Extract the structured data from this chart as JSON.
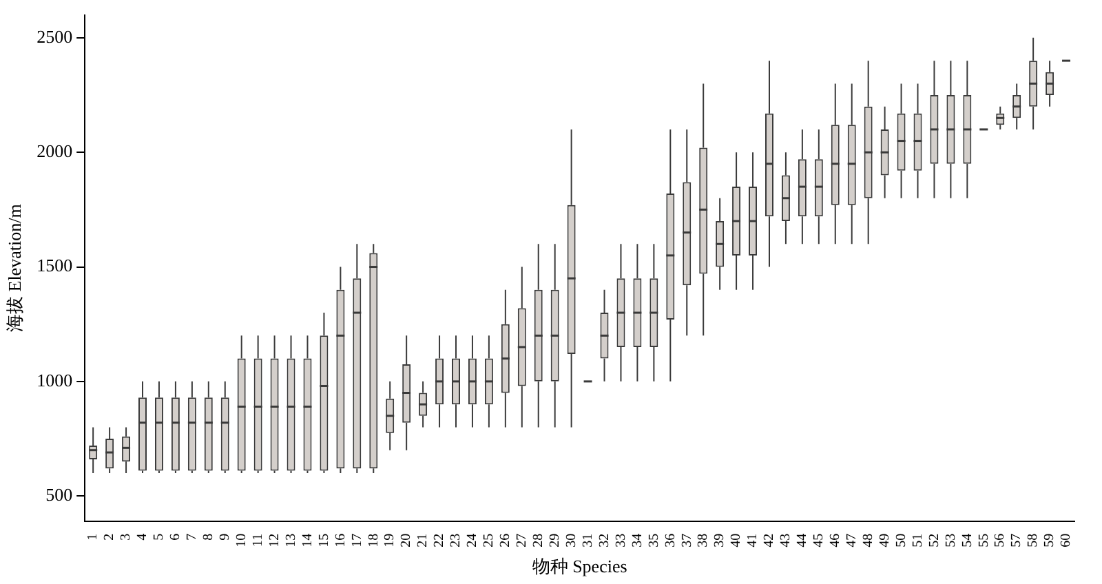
{
  "chart_data": {
    "type": "box",
    "xlabel": "物种 Species",
    "ylabel": "海拔 Elevation/m",
    "categories": [
      "1",
      "2",
      "3",
      "4",
      "5",
      "6",
      "7",
      "8",
      "9",
      "10",
      "11",
      "12",
      "13",
      "14",
      "15",
      "16",
      "17",
      "18",
      "19",
      "20",
      "21",
      "22",
      "23",
      "24",
      "25",
      "26",
      "27",
      "28",
      "29",
      "30",
      "31",
      "32",
      "33",
      "34",
      "35",
      "36",
      "37",
      "38",
      "39",
      "40",
      "41",
      "42",
      "43",
      "44",
      "45",
      "46",
      "47",
      "48",
      "49",
      "50",
      "51",
      "52",
      "53",
      "54",
      "55",
      "56",
      "57",
      "58",
      "59",
      "60"
    ],
    "ylim": [
      390,
      2600
    ],
    "yticks": [
      500,
      1000,
      1500,
      2000,
      2500
    ],
    "grid": false,
    "boxes": [
      {
        "low": 600,
        "q1": 660,
        "median": 700,
        "q3": 720,
        "high": 800
      },
      {
        "low": 600,
        "q1": 620,
        "median": 690,
        "q3": 750,
        "high": 800
      },
      {
        "low": 600,
        "q1": 650,
        "median": 710,
        "q3": 760,
        "high": 800
      },
      {
        "low": 600,
        "q1": 610,
        "median": 820,
        "q3": 930,
        "high": 1000
      },
      {
        "low": 600,
        "q1": 610,
        "median": 820,
        "q3": 930,
        "high": 1000
      },
      {
        "low": 600,
        "q1": 610,
        "median": 820,
        "q3": 930,
        "high": 1000
      },
      {
        "low": 600,
        "q1": 610,
        "median": 820,
        "q3": 930,
        "high": 1000
      },
      {
        "low": 600,
        "q1": 610,
        "median": 820,
        "q3": 930,
        "high": 1000
      },
      {
        "low": 600,
        "q1": 610,
        "median": 820,
        "q3": 930,
        "high": 1000
      },
      {
        "low": 600,
        "q1": 610,
        "median": 890,
        "q3": 1100,
        "high": 1200
      },
      {
        "low": 600,
        "q1": 610,
        "median": 890,
        "q3": 1100,
        "high": 1200
      },
      {
        "low": 600,
        "q1": 610,
        "median": 890,
        "q3": 1100,
        "high": 1200
      },
      {
        "low": 600,
        "q1": 610,
        "median": 890,
        "q3": 1100,
        "high": 1200
      },
      {
        "low": 600,
        "q1": 610,
        "median": 890,
        "q3": 1100,
        "high": 1200
      },
      {
        "low": 600,
        "q1": 610,
        "median": 980,
        "q3": 1200,
        "high": 1300
      },
      {
        "low": 600,
        "q1": 620,
        "median": 1200,
        "q3": 1400,
        "high": 1500
      },
      {
        "low": 600,
        "q1": 620,
        "median": 1300,
        "q3": 1450,
        "high": 1600
      },
      {
        "low": 600,
        "q1": 620,
        "median": 1500,
        "q3": 1560,
        "high": 1600
      },
      {
        "low": 700,
        "q1": 775,
        "median": 850,
        "q3": 925,
        "high": 1000
      },
      {
        "low": 700,
        "q1": 820,
        "median": 950,
        "q3": 1075,
        "high": 1200
      },
      {
        "low": 800,
        "q1": 850,
        "median": 900,
        "q3": 950,
        "high": 1000
      },
      {
        "low": 800,
        "q1": 900,
        "median": 1000,
        "q3": 1100,
        "high": 1200
      },
      {
        "low": 800,
        "q1": 900,
        "median": 1000,
        "q3": 1100,
        "high": 1200
      },
      {
        "low": 800,
        "q1": 900,
        "median": 1000,
        "q3": 1100,
        "high": 1200
      },
      {
        "low": 800,
        "q1": 900,
        "median": 1000,
        "q3": 1100,
        "high": 1200
      },
      {
        "low": 800,
        "q1": 950,
        "median": 1100,
        "q3": 1250,
        "high": 1400
      },
      {
        "low": 800,
        "q1": 980,
        "median": 1150,
        "q3": 1320,
        "high": 1500
      },
      {
        "low": 800,
        "q1": 1000,
        "median": 1200,
        "q3": 1400,
        "high": 1600
      },
      {
        "low": 800,
        "q1": 1000,
        "median": 1200,
        "q3": 1400,
        "high": 1600
      },
      {
        "low": 800,
        "q1": 1120,
        "median": 1450,
        "q3": 1770,
        "high": 2100
      },
      {
        "low": 1000,
        "q1": 1000,
        "median": 1000,
        "q3": 1000,
        "high": 1000
      },
      {
        "low": 1000,
        "q1": 1100,
        "median": 1200,
        "q3": 1300,
        "high": 1400
      },
      {
        "low": 1000,
        "q1": 1150,
        "median": 1300,
        "q3": 1450,
        "high": 1600
      },
      {
        "low": 1000,
        "q1": 1150,
        "median": 1300,
        "q3": 1450,
        "high": 1600
      },
      {
        "low": 1000,
        "q1": 1150,
        "median": 1300,
        "q3": 1450,
        "high": 1600
      },
      {
        "low": 1000,
        "q1": 1270,
        "median": 1550,
        "q3": 1820,
        "high": 2100
      },
      {
        "low": 1200,
        "q1": 1420,
        "median": 1650,
        "q3": 1870,
        "high": 2100
      },
      {
        "low": 1200,
        "q1": 1470,
        "median": 1750,
        "q3": 2020,
        "high": 2300
      },
      {
        "low": 1400,
        "q1": 1500,
        "median": 1600,
        "q3": 1700,
        "high": 1800
      },
      {
        "low": 1400,
        "q1": 1550,
        "median": 1700,
        "q3": 1850,
        "high": 2000
      },
      {
        "low": 1400,
        "q1": 1550,
        "median": 1700,
        "q3": 1850,
        "high": 2000
      },
      {
        "low": 1500,
        "q1": 1720,
        "median": 1950,
        "q3": 2170,
        "high": 2400
      },
      {
        "low": 1600,
        "q1": 1700,
        "median": 1800,
        "q3": 1900,
        "high": 2000
      },
      {
        "low": 1600,
        "q1": 1720,
        "median": 1850,
        "q3": 1970,
        "high": 2100
      },
      {
        "low": 1600,
        "q1": 1720,
        "median": 1850,
        "q3": 1970,
        "high": 2100
      },
      {
        "low": 1600,
        "q1": 1770,
        "median": 1950,
        "q3": 2120,
        "high": 2300
      },
      {
        "low": 1600,
        "q1": 1770,
        "median": 1950,
        "q3": 2120,
        "high": 2300
      },
      {
        "low": 1600,
        "q1": 1800,
        "median": 2000,
        "q3": 2200,
        "high": 2400
      },
      {
        "low": 1800,
        "q1": 1900,
        "median": 2000,
        "q3": 2100,
        "high": 2200
      },
      {
        "low": 1800,
        "q1": 1920,
        "median": 2050,
        "q3": 2170,
        "high": 2300
      },
      {
        "low": 1800,
        "q1": 1920,
        "median": 2050,
        "q3": 2170,
        "high": 2300
      },
      {
        "low": 1800,
        "q1": 1950,
        "median": 2100,
        "q3": 2250,
        "high": 2400
      },
      {
        "low": 1800,
        "q1": 1950,
        "median": 2100,
        "q3": 2250,
        "high": 2400
      },
      {
        "low": 1800,
        "q1": 1950,
        "median": 2100,
        "q3": 2250,
        "high": 2400
      },
      {
        "low": 2100,
        "q1": 2100,
        "median": 2100,
        "q3": 2100,
        "high": 2100
      },
      {
        "low": 2100,
        "q1": 2120,
        "median": 2150,
        "q3": 2170,
        "high": 2200
      },
      {
        "low": 2100,
        "q1": 2150,
        "median": 2200,
        "q3": 2250,
        "high": 2300
      },
      {
        "low": 2100,
        "q1": 2200,
        "median": 2300,
        "q3": 2400,
        "high": 2500
      },
      {
        "low": 2200,
        "q1": 2250,
        "median": 2300,
        "q3": 2350,
        "high": 2400
      },
      {
        "low": 2400,
        "q1": 2400,
        "median": 2400,
        "q3": 2400,
        "high": 2400
      }
    ]
  }
}
